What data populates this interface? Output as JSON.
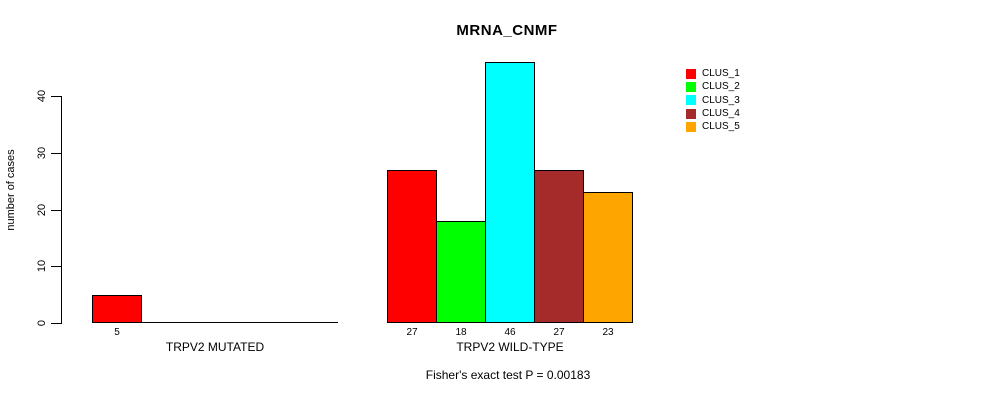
{
  "title": "MRNA_CNMF",
  "footer": "Fisher's exact test P = 0.00183",
  "y_axis": {
    "label": "number of cases",
    "ticks": [
      0,
      10,
      20,
      30,
      40
    ]
  },
  "legend": {
    "items": [
      {
        "label": "CLUS_1",
        "color": "#FF0000"
      },
      {
        "label": "CLUS_2",
        "color": "#00FF00"
      },
      {
        "label": "CLUS_3",
        "color": "#00FFFF"
      },
      {
        "label": "CLUS_4",
        "color": "#A52A2A"
      },
      {
        "label": "CLUS_5",
        "color": "#FFA500"
      }
    ]
  },
  "chart_data": {
    "type": "bar",
    "title": "MRNA_CNMF",
    "xlabel": "",
    "ylabel": "number of cases",
    "ylim": [
      0,
      46
    ],
    "yticks": [
      0,
      10,
      20,
      30,
      40
    ],
    "grid": false,
    "legend_position": "top-right",
    "categories": [
      "TRPV2 MUTATED",
      "TRPV2 WILD-TYPE"
    ],
    "series": [
      {
        "name": "CLUS_1",
        "color": "#FF0000",
        "values": [
          5,
          27
        ]
      },
      {
        "name": "CLUS_2",
        "color": "#00FF00",
        "values": [
          0,
          18
        ]
      },
      {
        "name": "CLUS_3",
        "color": "#00FFFF",
        "values": [
          0,
          46
        ]
      },
      {
        "name": "CLUS_4",
        "color": "#A52A2A",
        "values": [
          0,
          27
        ]
      },
      {
        "name": "CLUS_5",
        "color": "#FFA500",
        "values": [
          0,
          23
        ]
      }
    ],
    "bar_value_labels": {
      "TRPV2 MUTATED": [
        5
      ],
      "TRPV2 WILD-TYPE": [
        27,
        18,
        46,
        27,
        23
      ]
    },
    "annotation": "Fisher's exact test P = 0.00183"
  }
}
